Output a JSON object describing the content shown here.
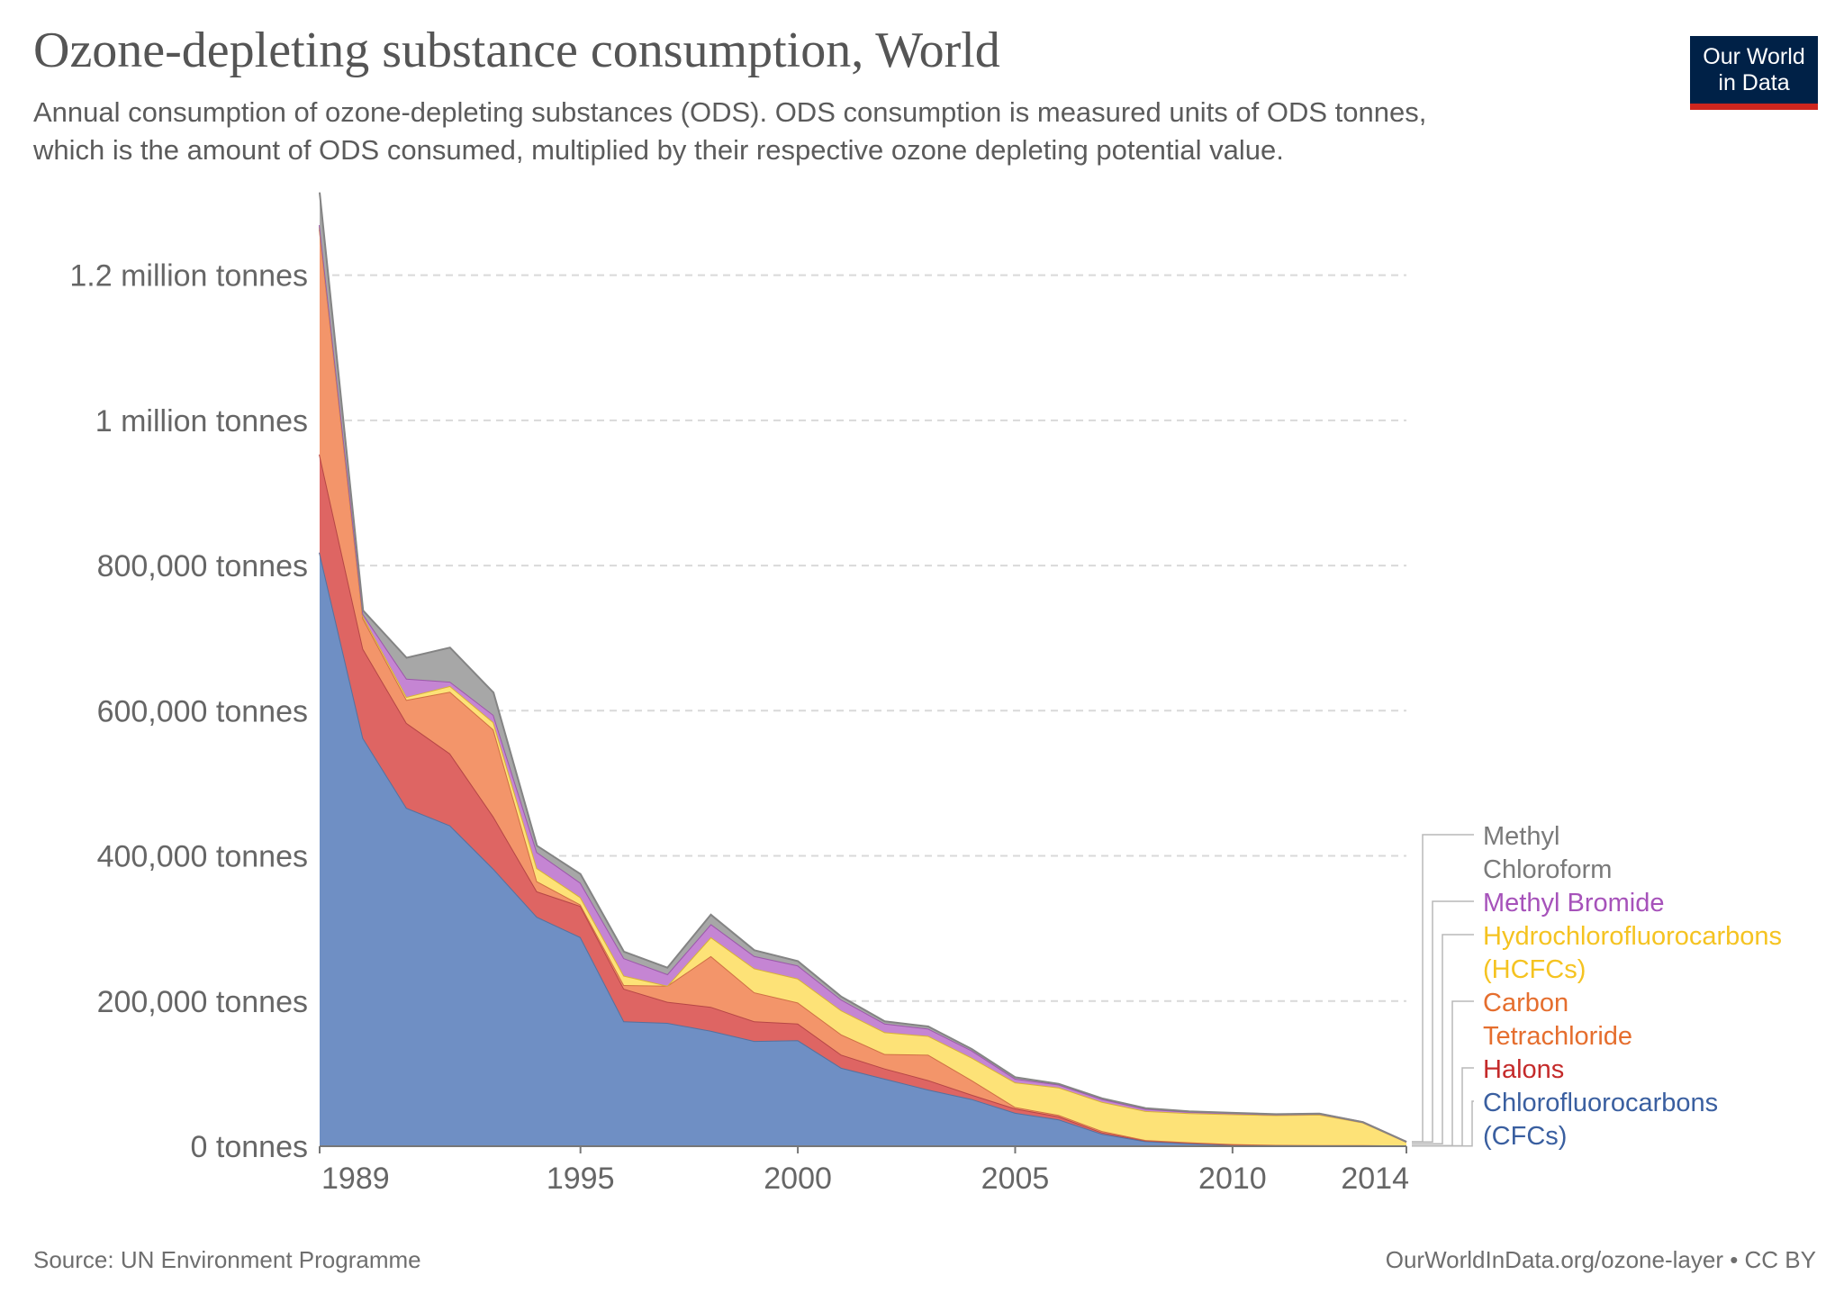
{
  "header": {
    "title": "Ozone-depleting substance consumption, World",
    "subtitle_line1": "Annual consumption of ozone-depleting substances (ODS). ODS consumption is measured units of ODS tonnes,",
    "subtitle_line2": "which is the amount of ODS consumed, multiplied by their respective ozone depleting potential value."
  },
  "logo": {
    "line1": "Our World",
    "line2": "in Data",
    "bg_color": "#002147",
    "accent_color": "#ce261e"
  },
  "footer": {
    "source": "Source: UN Environment Programme",
    "link": "OurWorldInData.org/ozone-layer • CC BY"
  },
  "chart_data": {
    "type": "area",
    "stacked": true,
    "x": [
      1989,
      1990,
      1991,
      1992,
      1993,
      1994,
      1995,
      1996,
      1997,
      1998,
      1999,
      2000,
      2001,
      2002,
      2003,
      2004,
      2005,
      2006,
      2007,
      2008,
      2009,
      2010,
      2011,
      2012,
      2013,
      2014
    ],
    "ylim": [
      0,
      1300000
    ],
    "yticks": [
      0,
      200000,
      400000,
      600000,
      800000,
      1000000,
      1200000
    ],
    "ytick_labels": [
      "0 tonnes",
      "200,000 tonnes",
      "400,000 tonnes",
      "600,000 tonnes",
      "800,000 tonnes",
      "1 million tonnes",
      "1.2 million tonnes"
    ],
    "xticks": [
      1989,
      1995,
      2000,
      2005,
      2010,
      2014
    ],
    "xtick_labels": [
      "1989",
      "1995",
      "2000",
      "2005",
      "2010",
      "2014"
    ],
    "grid": "horizontal dashed",
    "legend": "right, end of series",
    "series": [
      {
        "name": "Chlorofluorocarbons (CFCs)",
        "label_lines": [
          "Chlorofluorocarbons",
          "(CFCs)"
        ],
        "fill": "#6f8fc4",
        "stroke": "#54719f",
        "label_color": "#3a5fa0",
        "values": [
          818000,
          562000,
          466000,
          442000,
          382000,
          316000,
          288000,
          172000,
          170000,
          159000,
          145000,
          146000,
          108000,
          93000,
          78000,
          65000,
          46000,
          37000,
          17000,
          7000,
          4000,
          2000,
          1000,
          1000,
          1000,
          500
        ]
      },
      {
        "name": "Halons",
        "label_lines": [
          "Halons"
        ],
        "fill": "#de6563",
        "stroke": "#b64646",
        "label_color": "#c42a2a",
        "values": [
          135000,
          123000,
          117000,
          99000,
          72000,
          35000,
          43000,
          45000,
          29000,
          33000,
          27000,
          23000,
          18000,
          14000,
          13000,
          6000,
          6000,
          4000,
          2000,
          1000,
          1000,
          500,
          500,
          300,
          300,
          200
        ]
      },
      {
        "name": "Carbon Tetrachloride",
        "label_lines": [
          "Carbon",
          "Tetrachloride"
        ],
        "fill": "#f3956a",
        "stroke": "#cf7044",
        "label_color": "#e56e2e",
        "values": [
          310000,
          42000,
          32000,
          85000,
          120000,
          14000,
          2000,
          5000,
          22000,
          70000,
          40000,
          29000,
          28000,
          20000,
          35000,
          20000,
          2000,
          2000,
          2000,
          500,
          500,
          500,
          300,
          300,
          300,
          200
        ]
      },
      {
        "name": "Hydrochlorofluorocarbons (HCFCs)",
        "label_lines": [
          "Hydrochlorofluorocarbons",
          "(HCFCs)"
        ],
        "fill": "#fde277",
        "stroke": "#d8b335",
        "label_color": "#f5c321",
        "values": [
          3000,
          3000,
          4000,
          8000,
          10000,
          18000,
          10000,
          13000,
          0,
          26000,
          33000,
          33000,
          33000,
          30000,
          26000,
          31000,
          34000,
          38000,
          40000,
          40000,
          40000,
          41000,
          41000,
          42000,
          31000,
          5000
        ]
      },
      {
        "name": "Methyl Bromide",
        "label_lines": [
          "Methyl Bromide"
        ],
        "fill": "#c585d3",
        "stroke": "#9c58aa",
        "label_color": "#a652ba",
        "values": [
          3000,
          3000,
          25000,
          6000,
          10000,
          22000,
          20000,
          24000,
          16000,
          18000,
          17000,
          18000,
          15000,
          12000,
          10000,
          10000,
          5000,
          4000,
          4000,
          3000,
          2000,
          1500,
          1000,
          1000,
          500,
          200
        ]
      },
      {
        "name": "Methyl Chloroform",
        "label_lines": [
          "Methyl",
          "Chloroform"
        ],
        "fill": "#a7a7a7",
        "stroke": "#848484",
        "label_color": "#7a7a7a",
        "values": [
          45000,
          5000,
          29000,
          47000,
          31000,
          9000,
          12000,
          9000,
          9000,
          13000,
          8000,
          6000,
          4000,
          3000,
          3000,
          2000,
          2000,
          1000,
          1000,
          1000,
          500,
          500,
          300,
          300,
          200,
          100
        ]
      }
    ]
  }
}
